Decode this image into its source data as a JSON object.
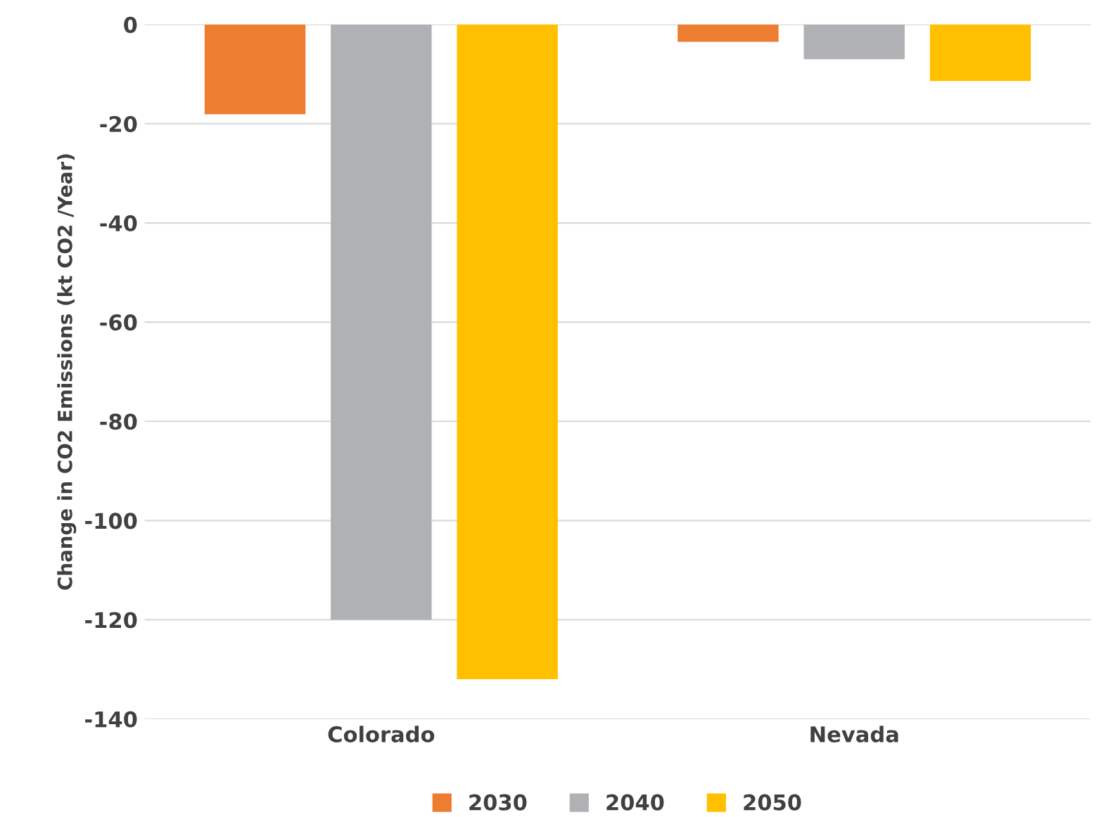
{
  "chart_data": {
    "type": "bar",
    "ylabel": "Change in CO2 Emissions (kt CO2 /Year)",
    "categories": [
      "Colorado",
      "Nevada"
    ],
    "series": [
      {
        "name": "2030",
        "color": "#ed7d31",
        "values": [
          -18.1,
          -3.5
        ]
      },
      {
        "name": "2040",
        "color": "#b0b1b4",
        "values": [
          -120,
          -7
        ]
      },
      {
        "name": "2050",
        "color": "#ffc000",
        "values": [
          -132,
          -11.4
        ]
      }
    ],
    "ylim": [
      -140,
      0
    ],
    "yticks": [
      -140,
      -120,
      -100,
      -80,
      -60,
      -40,
      -20,
      0
    ],
    "grid": "y",
    "legend": "bottom"
  }
}
